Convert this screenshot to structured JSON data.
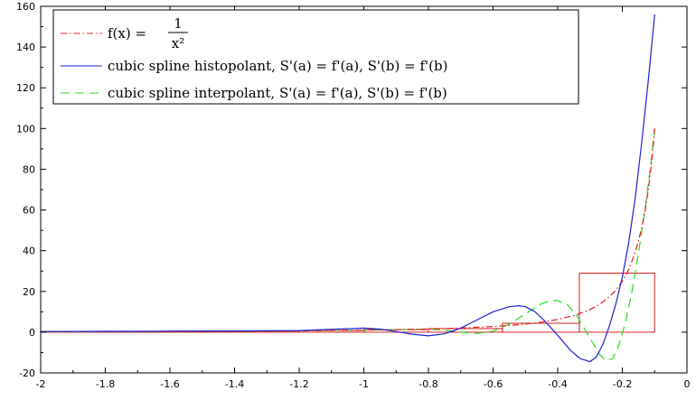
{
  "chart_data": {
    "type": "line",
    "title": "",
    "xlabel": "",
    "ylabel": "",
    "xlim": [
      -2,
      0
    ],
    "ylim": [
      -20,
      160
    ],
    "grid": false,
    "legend_position": "top-left",
    "x_ticks": [
      "-2",
      "-1.8",
      "-1.6",
      "-1.4",
      "-1.2",
      "-1",
      "-0.8",
      "-0.6",
      "-0.4",
      "-0.2",
      "0"
    ],
    "y_ticks": [
      "-20",
      "0",
      "20",
      "40",
      "60",
      "80",
      "100",
      "120",
      "140",
      "160"
    ],
    "series": [
      {
        "name": "f(x) = 1/x²",
        "label_parts": {
          "lhs": "f(x) =",
          "num": "1",
          "den": "x²"
        },
        "style": "dash-dot",
        "color": "#e8191c",
        "x": [
          -2.0,
          -1.8,
          -1.6,
          -1.4,
          -1.2,
          -1.0,
          -0.9,
          -0.8,
          -0.7,
          -0.6,
          -0.55,
          -0.5,
          -0.45,
          -0.4,
          -0.35,
          -0.3,
          -0.27,
          -0.24,
          -0.22,
          -0.2,
          -0.18,
          -0.16,
          -0.14,
          -0.13,
          -0.12,
          -0.11,
          -0.1
        ],
        "y": [
          0.25,
          0.309,
          0.391,
          0.51,
          0.694,
          1.0,
          1.235,
          1.563,
          2.041,
          2.778,
          3.306,
          4.0,
          4.938,
          6.25,
          8.163,
          11.11,
          13.72,
          17.36,
          20.66,
          25.0,
          30.86,
          39.06,
          51.02,
          59.17,
          69.44,
          82.64,
          100.0
        ]
      },
      {
        "name": "cubic spline histopolant, S'(a) = f'(a), S'(b) = f'(b)",
        "style": "solid",
        "color": "#1f1fd6",
        "x": [
          -2.0,
          -1.8,
          -1.6,
          -1.4,
          -1.2,
          -1.1,
          -1.0,
          -0.95,
          -0.9,
          -0.85,
          -0.8,
          -0.75,
          -0.7,
          -0.65,
          -0.6,
          -0.55,
          -0.52,
          -0.5,
          -0.47,
          -0.44,
          -0.4,
          -0.36,
          -0.33,
          -0.3,
          -0.28,
          -0.26,
          -0.24,
          -0.22,
          -0.2,
          -0.18,
          -0.16,
          -0.14,
          -0.12,
          -0.1
        ],
        "y": [
          0.3,
          0.4,
          0.5,
          0.6,
          0.8,
          1.4,
          2.0,
          1.5,
          0.3,
          -1.0,
          -1.8,
          -0.8,
          2.0,
          6.0,
          10.0,
          12.5,
          13.0,
          12.5,
          10.0,
          5.5,
          -1.5,
          -9.0,
          -13.0,
          -14.5,
          -12.0,
          -6.0,
          3.0,
          14.0,
          27.0,
          44.0,
          66.0,
          93.0,
          123.0,
          156.0
        ]
      },
      {
        "name": "cubic spline interpolant, S'(a) = f'(a), S'(b) = f'(b)",
        "style": "dashed",
        "color": "#22dd22",
        "x": [
          -2.0,
          -1.8,
          -1.6,
          -1.4,
          -1.2,
          -1.0,
          -0.9,
          -0.85,
          -0.8,
          -0.75,
          -0.7,
          -0.65,
          -0.6,
          -0.55,
          -0.5,
          -0.45,
          -0.42,
          -0.4,
          -0.37,
          -0.34,
          -0.3,
          -0.27,
          -0.25,
          -0.23,
          -0.21,
          -0.19,
          -0.17,
          -0.15,
          -0.13,
          -0.11,
          -0.1
        ],
        "y": [
          0.25,
          0.31,
          0.39,
          0.5,
          0.7,
          1.0,
          1.2,
          1.4,
          1.56,
          1.0,
          0.0,
          -0.6,
          0.5,
          4.0,
          9.0,
          14.0,
          15.5,
          15.5,
          13.5,
          8.0,
          -3.0,
          -11.0,
          -14.0,
          -13.0,
          -6.0,
          5.0,
          20.0,
          39.0,
          60.0,
          85.0,
          100.0
        ]
      }
    ],
    "bars": {
      "color": "#d62020",
      "edges": [
        -2.0,
        -1.6,
        -1.2,
        -1.0,
        -0.8,
        -0.571,
        -0.333,
        -0.1
      ],
      "heights": [
        0.3125,
        0.521,
        0.833,
        1.25,
        1.75,
        4.375,
        29.0
      ]
    }
  }
}
